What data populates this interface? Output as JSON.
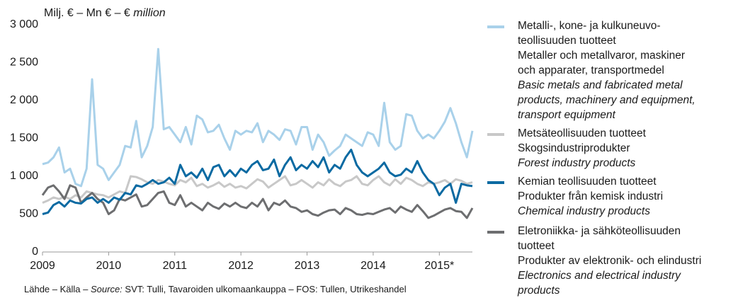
{
  "chart_data": {
    "type": "line",
    "y_axis_label": {
      "text": "Milj. € – Mn € – €",
      "italic": "million"
    },
    "source": {
      "prefix": "Lähde – Källa –",
      "italic": "Source:",
      "text": "SVT: Tulli, Tavaroiden ulkomaankauppa – FOS: Tullen, Utrikeshandel"
    },
    "x": [
      0,
      1,
      2,
      3,
      4,
      5,
      6,
      7,
      8,
      9,
      10,
      11,
      12,
      13,
      14,
      15,
      16,
      17,
      18,
      19,
      20,
      21,
      22,
      23,
      24,
      25,
      26,
      27,
      28,
      29,
      30,
      31,
      32,
      33,
      34,
      35,
      36,
      37,
      38,
      39,
      40,
      41,
      42,
      43,
      44,
      45,
      46,
      47,
      48,
      49,
      50,
      51,
      52,
      53,
      54,
      55,
      56,
      57,
      58,
      59,
      60,
      61,
      62,
      63,
      64,
      65,
      66,
      67,
      68,
      69,
      70,
      71,
      72,
      73,
      74,
      75,
      76,
      77,
      78
    ],
    "xlim": [
      0,
      78
    ],
    "xticks": [
      {
        "value": 0,
        "label": "2009"
      },
      {
        "value": 12,
        "label": "2010"
      },
      {
        "value": 24,
        "label": "2011"
      },
      {
        "value": 36,
        "label": "2012"
      },
      {
        "value": 48,
        "label": "2013"
      },
      {
        "value": 60,
        "label": "2014"
      },
      {
        "value": 72,
        "label": "2015*"
      }
    ],
    "ylim": [
      0,
      3000
    ],
    "yticks": [
      0,
      500,
      {
        "value": 1000,
        "label": "1 000"
      },
      {
        "value": 1500,
        "label": "1 500"
      },
      {
        "value": 2000,
        "label": "2 000"
      },
      {
        "value": 2500,
        "label": "2 500"
      },
      {
        "value": 3000,
        "label": "3 000"
      }
    ],
    "series": [
      {
        "name": {
          "fi": [
            "Metalli-, kone- ja kulkuneuvo-",
            "teollisuuden tuotteet"
          ],
          "sv": [
            "Metaller och metallvaror, maskiner",
            "och apparater, transportmedel"
          ],
          "en": [
            "Basic metals and fabricated metal",
            "products, machinery and equipment,",
            "transport equipment"
          ]
        },
        "color": "#a9d1ea",
        "values": [
          1160,
          1180,
          1250,
          1380,
          1050,
          1100,
          900,
          870,
          1100,
          2280,
          1150,
          1100,
          950,
          1050,
          1150,
          1400,
          1380,
          1730,
          1250,
          1400,
          1650,
          2680,
          1620,
          1650,
          1550,
          1450,
          1650,
          1420,
          1800,
          1750,
          1580,
          1600,
          1680,
          1500,
          1350,
          1600,
          1550,
          1600,
          1580,
          1700,
          1450,
          1600,
          1550,
          1480,
          1620,
          1600,
          1420,
          1650,
          1650,
          1350,
          1550,
          1450,
          1270,
          1340,
          1400,
          1550,
          1500,
          1450,
          1400,
          1580,
          1550,
          1400,
          1970,
          1450,
          1350,
          1400,
          1820,
          1800,
          1600,
          1500,
          1550,
          1500,
          1600,
          1720,
          1900,
          1700,
          1450,
          1250,
          1600
        ]
      },
      {
        "name": {
          "fi": [
            "Metsäteollisuuden tuotteet"
          ],
          "sv": [
            "Skogsindustriprodukter"
          ],
          "en": [
            "Forest industry products"
          ]
        },
        "color": "#c8c8c8",
        "values": [
          650,
          680,
          720,
          700,
          730,
          700,
          750,
          720,
          800,
          780,
          760,
          750,
          720,
          760,
          800,
          780,
          1000,
          990,
          960,
          920,
          900,
          950,
          930,
          900,
          880,
          950,
          920,
          980,
          870,
          900,
          850,
          880,
          920,
          860,
          900,
          850,
          870,
          840,
          900,
          960,
          930,
          850,
          900,
          950,
          1000,
          880,
          900,
          950,
          900,
          850,
          920,
          880,
          960,
          900,
          870,
          930,
          950,
          1000,
          900,
          880,
          950,
          1000,
          920,
          880,
          960,
          900,
          980,
          950,
          900,
          870,
          920,
          900,
          920,
          950,
          900,
          960,
          940,
          900,
          920
        ]
      },
      {
        "name": {
          "fi": [
            "Kemian teollisuuden tuotteet"
          ],
          "sv": [
            "Produkter från kemisk industri"
          ],
          "en": [
            "Chemical industry products"
          ]
        },
        "color": "#0b6aa2",
        "values": [
          500,
          520,
          620,
          660,
          600,
          680,
          650,
          640,
          700,
          720,
          650,
          700,
          650,
          720,
          690,
          780,
          760,
          880,
          860,
          900,
          950,
          900,
          920,
          980,
          900,
          1150,
          1000,
          1050,
          980,
          1100,
          950,
          1120,
          1150,
          1000,
          1080,
          1000,
          1100,
          1050,
          1150,
          1200,
          1080,
          1100,
          1220,
          1000,
          1150,
          1250,
          1080,
          1150,
          1100,
          1200,
          1120,
          1250,
          1050,
          1150,
          1100,
          1250,
          1350,
          1150,
          1050,
          1000,
          1050,
          1100,
          1180,
          1050,
          1000,
          1020,
          1100,
          1050,
          1200,
          1050,
          950,
          900,
          750,
          850,
          900,
          650,
          900,
          880,
          870
        ]
      },
      {
        "name": {
          "fi": [
            "Eletroniikka- ja sähköteollisuuden",
            "tuotteet"
          ],
          "sv": [
            "Produkter av elektronik- och elindustri"
          ],
          "en": [
            "Electronics and electrical industry",
            "products"
          ]
        },
        "color": "#6d6e70",
        "values": [
          750,
          850,
          880,
          800,
          700,
          880,
          850,
          650,
          720,
          780,
          700,
          650,
          500,
          550,
          700,
          680,
          720,
          760,
          600,
          620,
          700,
          780,
          800,
          650,
          620,
          750,
          600,
          650,
          600,
          550,
          650,
          600,
          570,
          640,
          600,
          650,
          600,
          580,
          650,
          600,
          700,
          550,
          650,
          620,
          680,
          600,
          580,
          530,
          550,
          500,
          480,
          520,
          550,
          560,
          500,
          580,
          550,
          500,
          490,
          510,
          500,
          530,
          560,
          580,
          520,
          600,
          560,
          530,
          620,
          540,
          450,
          480,
          520,
          560,
          580,
          540,
          530,
          450,
          580
        ]
      }
    ]
  }
}
